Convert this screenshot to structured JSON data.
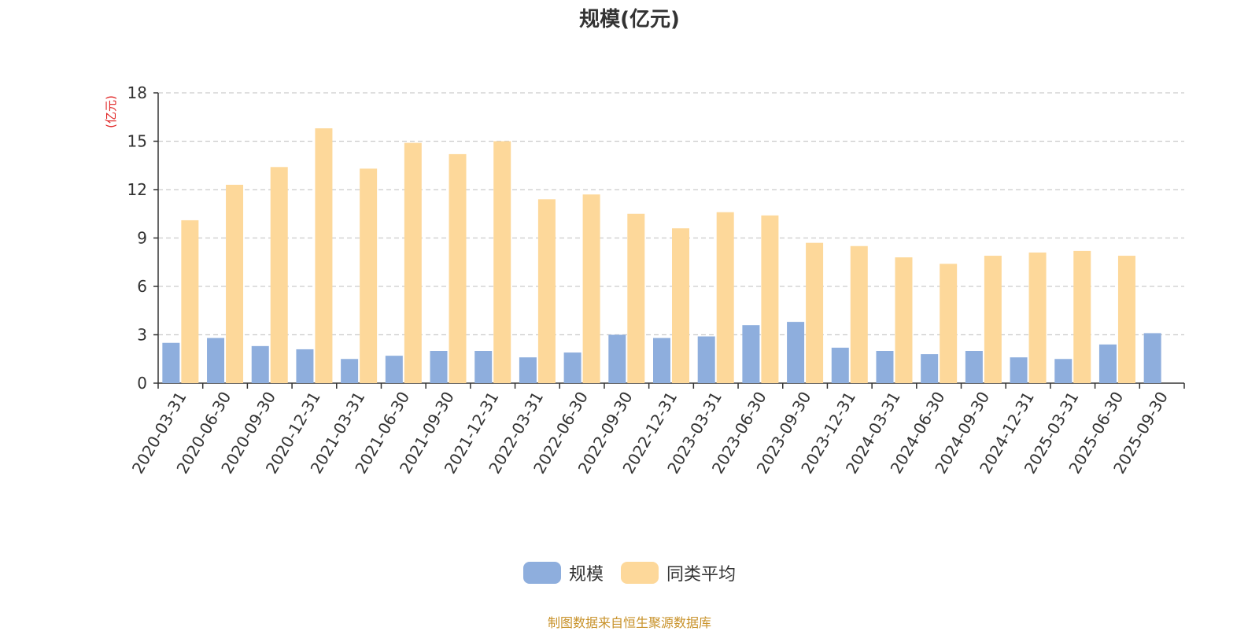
{
  "chart_data": {
    "type": "bar",
    "title": "规模(亿元)",
    "ylabel": "(亿元)",
    "xlabel": "",
    "ylim": [
      0,
      18
    ],
    "yticks": [
      0,
      3,
      6,
      9,
      12,
      15,
      18
    ],
    "grid": true,
    "legend_position": "bottom-center",
    "categories": [
      "2020-03-31",
      "2020-06-30",
      "2020-09-30",
      "2020-12-31",
      "2021-03-31",
      "2021-06-30",
      "2021-09-30",
      "2021-12-31",
      "2022-03-31",
      "2022-06-30",
      "2022-09-30",
      "2022-12-31",
      "2023-03-31",
      "2023-06-30",
      "2023-09-30",
      "2023-12-31",
      "2024-03-31",
      "2024-06-30",
      "2024-09-30",
      "2024-12-31",
      "2025-03-31",
      "2025-06-30",
      "2025-09-30"
    ],
    "series": [
      {
        "name": "规模",
        "color": "#8eaedd",
        "values": [
          2.5,
          2.8,
          2.3,
          2.1,
          1.5,
          1.7,
          2.0,
          2.0,
          1.6,
          1.9,
          3.0,
          2.8,
          2.9,
          3.6,
          3.8,
          2.2,
          2.0,
          1.8,
          2.0,
          1.6,
          1.5,
          2.4,
          3.1
        ]
      },
      {
        "name": "同类平均",
        "color": "#fdd89a",
        "values": [
          10.1,
          12.3,
          13.4,
          15.8,
          13.3,
          14.9,
          14.2,
          15.0,
          11.4,
          11.7,
          10.5,
          9.6,
          10.6,
          10.4,
          8.7,
          8.5,
          7.8,
          7.4,
          7.9,
          8.1,
          8.2,
          7.9,
          null
        ]
      }
    ]
  },
  "footer": {
    "source": "制图数据来自恒生聚源数据库"
  }
}
